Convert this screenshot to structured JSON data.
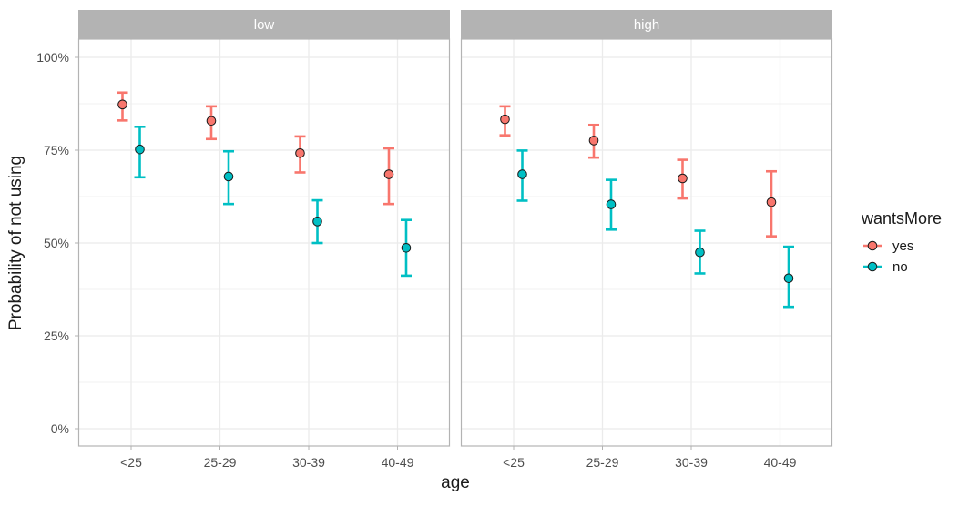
{
  "chart_data": {
    "type": "scatter",
    "subtype": "pointrange-with-errorbars",
    "facets": [
      "low",
      "high"
    ],
    "categories": [
      "<25",
      "25-29",
      "30-39",
      "40-49"
    ],
    "xlabel": "age",
    "ylabel": "Probability of not using",
    "ylim": [
      0,
      1.05
    ],
    "yticks": [
      0,
      0.25,
      0.5,
      0.75,
      1.0
    ],
    "ytick_labels": [
      "0%",
      "25%",
      "50%",
      "75%",
      "100%"
    ],
    "grid": true,
    "legend": {
      "title": "wantsMore",
      "placement": "right"
    },
    "series": [
      {
        "name": "yes",
        "color": "#F8766D",
        "panels": {
          "low": {
            "values": [
              0.873,
              0.829,
              0.742,
              0.685
            ],
            "lower": [
              0.83,
              0.78,
              0.69,
              0.605
            ],
            "upper": [
              0.905,
              0.868,
              0.787,
              0.755
            ]
          },
          "high": {
            "values": [
              0.833,
              0.776,
              0.674,
              0.61
            ],
            "lower": [
              0.79,
              0.73,
              0.62,
              0.518
            ],
            "upper": [
              0.868,
              0.818,
              0.724,
              0.693
            ]
          }
        }
      },
      {
        "name": "no",
        "color": "#00BFC4",
        "panels": {
          "low": {
            "values": [
              0.752,
              0.679,
              0.558,
              0.487
            ],
            "lower": [
              0.677,
              0.605,
              0.5,
              0.412
            ],
            "upper": [
              0.813,
              0.747,
              0.615,
              0.562
            ]
          },
          "high": {
            "values": [
              0.685,
              0.604,
              0.475,
              0.405
            ],
            "lower": [
              0.614,
              0.536,
              0.418,
              0.328
            ],
            "upper": [
              0.749,
              0.67,
              0.533,
              0.49
            ]
          }
        }
      }
    ]
  }
}
